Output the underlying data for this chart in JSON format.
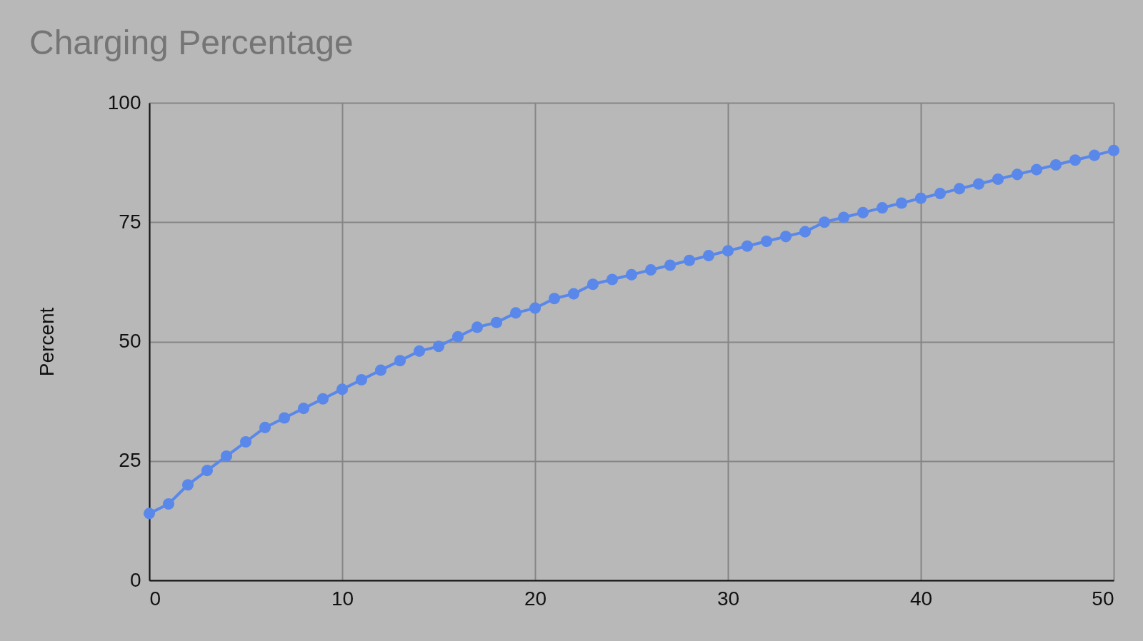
{
  "chart_data": {
    "type": "line",
    "title": "Charging Percentage",
    "ylabel": "Percent",
    "x": [
      0,
      1,
      2,
      3,
      4,
      5,
      6,
      7,
      8,
      9,
      10,
      11,
      12,
      13,
      14,
      15,
      16,
      17,
      18,
      19,
      20,
      21,
      22,
      23,
      24,
      25,
      26,
      27,
      28,
      29,
      30,
      31,
      32,
      33,
      34,
      35,
      36,
      37,
      38,
      39,
      40,
      41,
      42,
      43,
      44,
      45,
      46,
      47,
      48,
      49,
      50
    ],
    "series": [
      {
        "color": "#5a88ea",
        "values": [
          14,
          16,
          20,
          23,
          26,
          29,
          32,
          34,
          36,
          38,
          40,
          42,
          44,
          46,
          48,
          49,
          51,
          53,
          54,
          56,
          57,
          59,
          60,
          62,
          63,
          64,
          65,
          66,
          67,
          68,
          69,
          70,
          71,
          72,
          73,
          75,
          76,
          77,
          78,
          79,
          80,
          81,
          82,
          83,
          84,
          85,
          86,
          87,
          88,
          89,
          90
        ]
      }
    ],
    "xlim": [
      0,
      50
    ],
    "xticks": [
      0,
      10,
      20,
      30,
      40,
      50
    ],
    "ylim": [
      0,
      100
    ],
    "yticks": [
      0,
      25,
      50,
      75,
      100
    ],
    "grid": true,
    "marker": "circle",
    "line_style": "solid"
  }
}
